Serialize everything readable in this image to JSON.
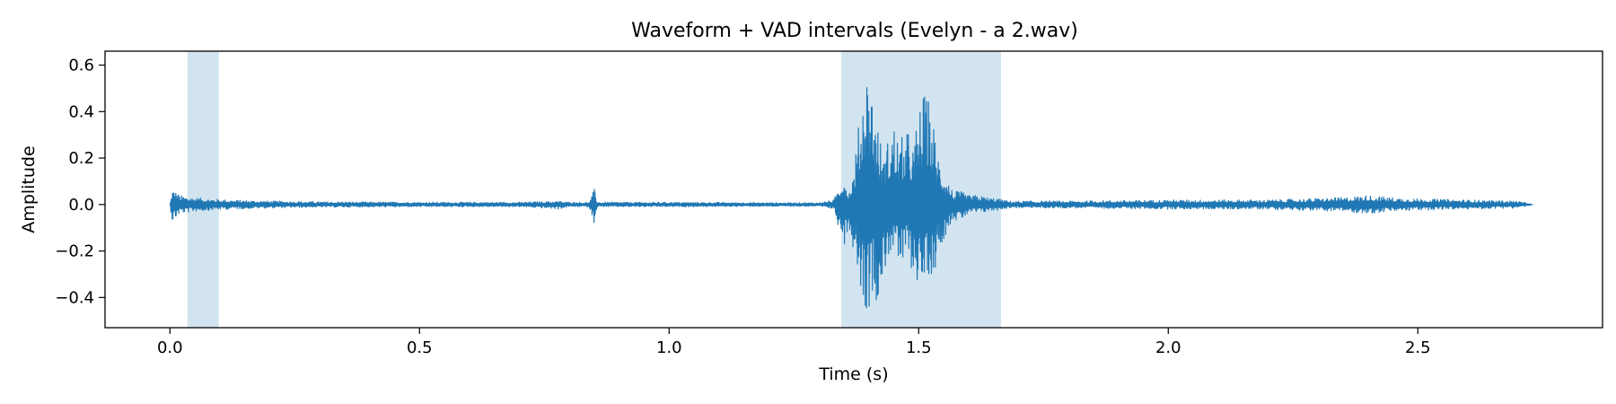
{
  "colors": {
    "background": "#ffffff",
    "waveform": "#1f77b4",
    "vad_span": "#1f77b4",
    "axes": "#000000"
  },
  "chart_data": {
    "type": "line",
    "title": "Waveform + VAD intervals (Evelyn - a 2.wav)",
    "xlabel": "Time (s)",
    "ylabel": "Amplitude",
    "xlim": [
      -0.13,
      2.87
    ],
    "ylim": [
      -0.53,
      0.66
    ],
    "x_ticks": [
      0.0,
      0.5,
      1.0,
      1.5,
      2.0,
      2.5
    ],
    "x_tick_labels": [
      "0.0",
      "0.5",
      "1.0",
      "1.5",
      "2.0",
      "2.5"
    ],
    "y_ticks": [
      -0.4,
      -0.2,
      0.0,
      0.2,
      0.4,
      0.6
    ],
    "y_tick_labels": [
      "−0.4",
      "−0.2",
      "0.0",
      "0.2",
      "0.4",
      "0.6"
    ],
    "grid": false,
    "duration": 2.73,
    "vad_intervals": [
      {
        "start": 0.035,
        "end": 0.098
      },
      {
        "start": 1.345,
        "end": 1.665
      }
    ],
    "envelope": {
      "t": [
        0.0,
        0.005,
        0.02,
        0.05,
        0.08,
        0.12,
        0.2,
        0.3,
        0.5,
        0.7,
        0.78,
        0.8,
        0.84,
        0.845,
        0.85,
        0.855,
        0.86,
        0.9,
        1.0,
        1.2,
        1.3,
        1.33,
        1.35,
        1.36,
        1.37,
        1.38,
        1.39,
        1.395,
        1.4,
        1.41,
        1.42,
        1.43,
        1.44,
        1.45,
        1.46,
        1.47,
        1.48,
        1.49,
        1.5,
        1.51,
        1.52,
        1.53,
        1.54,
        1.55,
        1.56,
        1.57,
        1.58,
        1.6,
        1.62,
        1.64,
        1.66,
        1.68,
        1.7,
        1.8,
        2.0,
        2.2,
        2.35,
        2.4,
        2.45,
        2.5,
        2.6,
        2.7,
        2.73
      ],
      "max": [
        0.0,
        0.07,
        0.04,
        0.03,
        0.025,
        0.02,
        0.015,
        0.012,
        0.01,
        0.01,
        0.015,
        0.01,
        0.01,
        0.035,
        0.07,
        0.02,
        0.01,
        0.01,
        0.01,
        0.008,
        0.008,
        0.02,
        0.14,
        0.05,
        0.15,
        0.35,
        0.56,
        0.61,
        0.58,
        0.48,
        0.32,
        0.2,
        0.3,
        0.36,
        0.28,
        0.3,
        0.32,
        0.25,
        0.42,
        0.48,
        0.46,
        0.35,
        0.22,
        0.15,
        0.1,
        0.05,
        0.06,
        0.04,
        0.04,
        0.03,
        0.025,
        0.015,
        0.015,
        0.015,
        0.02,
        0.02,
        0.03,
        0.04,
        0.03,
        0.025,
        0.02,
        0.015,
        0.0
      ],
      "min": [
        0.0,
        -0.08,
        -0.04,
        -0.03,
        -0.025,
        -0.02,
        -0.015,
        -0.012,
        -0.01,
        -0.01,
        -0.02,
        -0.01,
        -0.01,
        -0.05,
        -0.08,
        -0.02,
        -0.01,
        -0.01,
        -0.01,
        -0.008,
        -0.008,
        -0.02,
        -0.18,
        -0.1,
        -0.2,
        -0.3,
        -0.45,
        -0.47,
        -0.45,
        -0.4,
        -0.42,
        -0.32,
        -0.22,
        -0.2,
        -0.28,
        -0.3,
        -0.2,
        -0.35,
        -0.33,
        -0.4,
        -0.3,
        -0.32,
        -0.2,
        -0.15,
        -0.1,
        -0.06,
        -0.08,
        -0.04,
        -0.04,
        -0.03,
        -0.025,
        -0.015,
        -0.015,
        -0.015,
        -0.02,
        -0.02,
        -0.03,
        -0.04,
        -0.03,
        -0.025,
        -0.02,
        -0.015,
        0.0
      ]
    }
  }
}
